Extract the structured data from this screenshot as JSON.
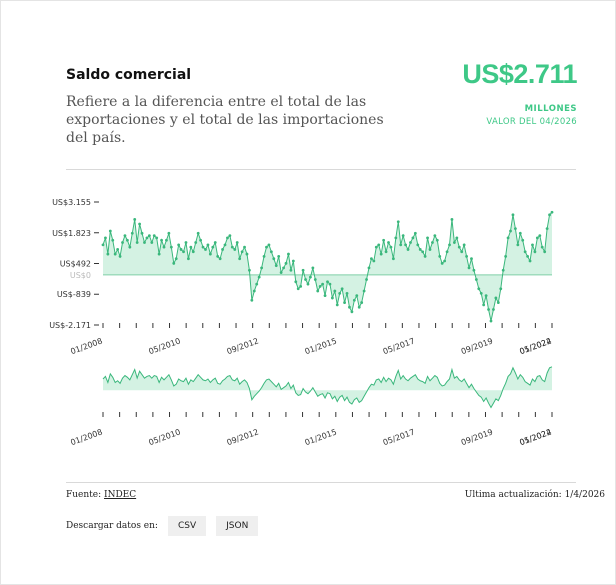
{
  "header": {
    "title": "Saldo comercial",
    "description": "Refiere a la diferencia entre el total de las exportaciones y el total de las importaciones del país."
  },
  "kpi": {
    "value": "US$2.711",
    "unit": "MILLONES",
    "date_label": "VALOR DEL 04/2026"
  },
  "colors": {
    "accent": "#3ec887",
    "fill": "#d4f2e3",
    "line": "#3ab77c"
  },
  "footer": {
    "source_label": "Fuente:",
    "source_link": "INDEC",
    "updated_label": "Ultima actualización: 1/4/2026",
    "download_label": "Descargar datos en:",
    "csv_label": "CSV",
    "json_label": "JSON"
  },
  "chart_data": {
    "type": "area",
    "start": "01/2008",
    "frequency": "monthly",
    "baseline": 0,
    "baseline_label": "US$0",
    "ylim": [
      -2171,
      3155
    ],
    "y_ticks": [
      {
        "value": 3155,
        "label": "US$3.155"
      },
      {
        "value": 1823,
        "label": "US$1.823"
      },
      {
        "value": 492,
        "label": "US$492"
      },
      {
        "value": -839,
        "label": "US$-839"
      },
      {
        "value": -2171,
        "label": "US$-2.171"
      }
    ],
    "x_tick_labels": [
      "01/2008",
      "05/2010",
      "09/2012",
      "01/2015",
      "05/2017",
      "09/2019",
      "01/2022",
      "05/2024"
    ],
    "values": [
      1300,
      1600,
      900,
      1900,
      1500,
      900,
      1100,
      800,
      1400,
      1700,
      1500,
      1200,
      1800,
      2400,
      1400,
      2200,
      1800,
      1400,
      1600,
      1700,
      1400,
      1700,
      1600,
      900,
      1500,
      1200,
      1500,
      1800,
      1200,
      500,
      700,
      1300,
      1100,
      1000,
      1400,
      700,
      1200,
      1000,
      1400,
      1800,
      1500,
      1200,
      1100,
      1300,
      900,
      1200,
      1400,
      800,
      700,
      1100,
      1300,
      1600,
      1700,
      1200,
      1100,
      1400,
      700,
      1000,
      1200,
      900,
      200,
      -1100,
      -700,
      -400,
      -100,
      300,
      800,
      1200,
      1300,
      1000,
      700,
      400,
      800,
      100,
      300,
      500,
      900,
      200,
      600,
      -300,
      -600,
      -500,
      200,
      -200,
      -400,
      -100,
      300,
      -200,
      -700,
      -500,
      -400,
      -900,
      -300,
      -400,
      -1000,
      -700,
      -1300,
      -800,
      -600,
      -1200,
      -800,
      -1400,
      -1600,
      -1100,
      -900,
      -1400,
      -1200,
      -700,
      -200,
      300,
      700,
      600,
      1200,
      1300,
      900,
      1500,
      1000,
      1400,
      1200,
      700,
      1600,
      2300,
      1300,
      1700,
      1300,
      1100,
      1400,
      1600,
      1800,
      1300,
      1100,
      1000,
      800,
      1600,
      1100,
      1400,
      1700,
      1500,
      800,
      500,
      600,
      1000,
      1300,
      2400,
      1400,
      1600,
      1200,
      1000,
      1300,
      800,
      300,
      700,
      200,
      -200,
      -600,
      -800,
      -1300,
      -900,
      -1500,
      -2000,
      -1500,
      -1000,
      -1200,
      -600,
      200,
      800,
      1600,
      1900,
      2600,
      2000,
      1300,
      1800,
      1500,
      1000,
      800,
      600,
      1300,
      1000,
      1600,
      1700,
      1200,
      1000,
      2000,
      2600,
      2711
    ]
  }
}
